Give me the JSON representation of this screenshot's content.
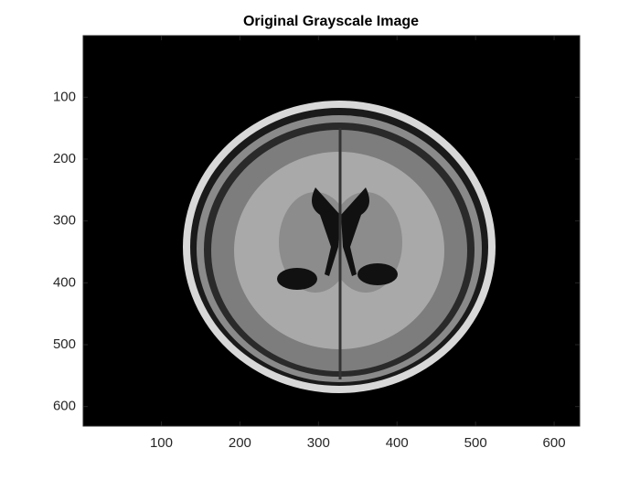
{
  "chart_data": {
    "type": "image",
    "title": "Original Grayscale Image",
    "xlim": [
      0.5,
      632.5
    ],
    "ylim": [
      0.5,
      631.5
    ],
    "y_reversed": true,
    "xticks": [
      100,
      200,
      300,
      400,
      500,
      600
    ],
    "yticks": [
      100,
      200,
      300,
      400,
      500,
      600
    ]
  }
}
